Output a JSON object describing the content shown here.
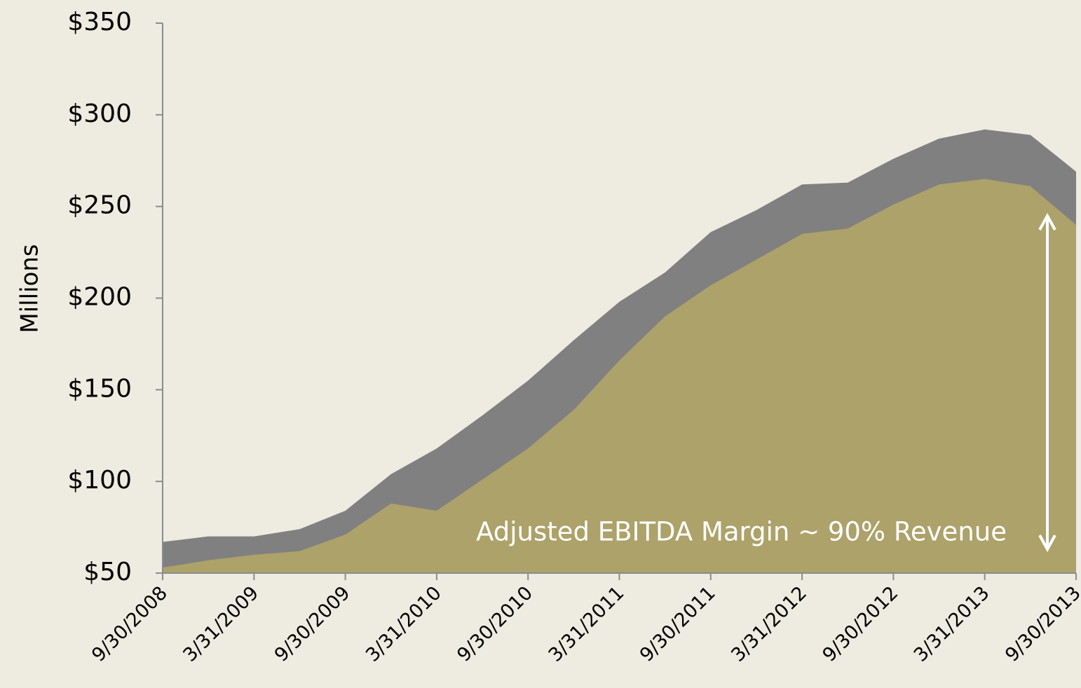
{
  "chart_data": {
    "type": "area",
    "ylabel": "Millions",
    "annotation": "Adjusted EBITDA Margin ~ 90% Revenue",
    "categories": [
      "9/30/2008",
      null,
      "3/31/2009",
      null,
      "9/30/2009",
      null,
      "3/31/2010",
      null,
      "9/30/2010",
      null,
      "3/31/2011",
      null,
      "9/30/2011",
      null,
      "3/31/2012",
      null,
      "9/30/2012",
      null,
      "3/31/2013",
      null,
      "9/30/2013"
    ],
    "series": [
      {
        "color": "#808080",
        "values": [
          67,
          70,
          70,
          74,
          84,
          104,
          118,
          136,
          155,
          177,
          198,
          214,
          236,
          248,
          262,
          263,
          276,
          287,
          292,
          289,
          269
        ]
      },
      {
        "color": "#aca26a",
        "values": [
          53,
          57,
          60,
          62,
          71,
          88,
          84,
          101,
          118,
          139,
          166,
          190,
          207,
          221,
          235,
          238,
          251,
          262,
          265,
          261,
          240
        ]
      }
    ],
    "ylim": [
      50,
      350
    ],
    "yticks": [
      {
        "value": 50,
        "label": "$50"
      },
      {
        "value": 100,
        "label": "$100"
      },
      {
        "value": 150,
        "label": "$150"
      },
      {
        "value": 200,
        "label": "$200"
      },
      {
        "value": 250,
        "label": "$250"
      },
      {
        "value": 300,
        "label": "$300"
      },
      {
        "value": 350,
        "label": "$350"
      }
    ]
  }
}
